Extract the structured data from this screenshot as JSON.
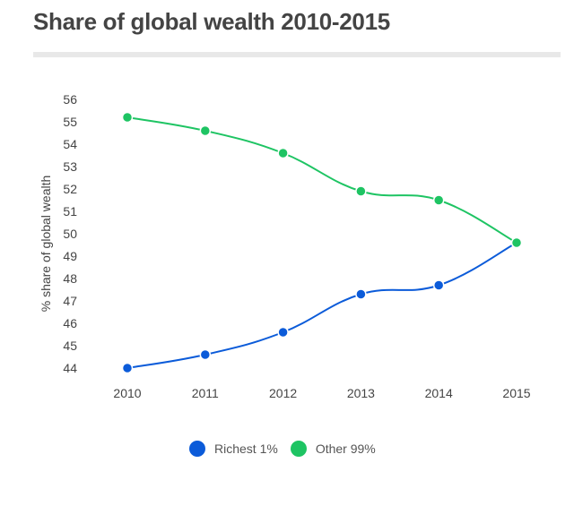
{
  "chart_data": {
    "type": "line",
    "title": "Share of global wealth 2010-2015",
    "xlabel": "",
    "ylabel": "% share of global wealth",
    "x": [
      "2010",
      "2011",
      "2012",
      "2013",
      "2014",
      "2015"
    ],
    "ylim": [
      44,
      56
    ],
    "yticks": [
      "44",
      "45",
      "46",
      "47",
      "48",
      "49",
      "50",
      "51",
      "52",
      "53",
      "54",
      "55",
      "56"
    ],
    "grid": false,
    "legend_position": "bottom",
    "series": [
      {
        "name": "Richest 1%",
        "color": "#0b5bd9",
        "values": [
          44.0,
          44.6,
          45.6,
          47.3,
          47.7,
          49.6
        ]
      },
      {
        "name": "Other 99%",
        "color": "#1ec463",
        "values": [
          55.2,
          54.6,
          53.6,
          51.9,
          51.5,
          49.6
        ]
      }
    ]
  }
}
